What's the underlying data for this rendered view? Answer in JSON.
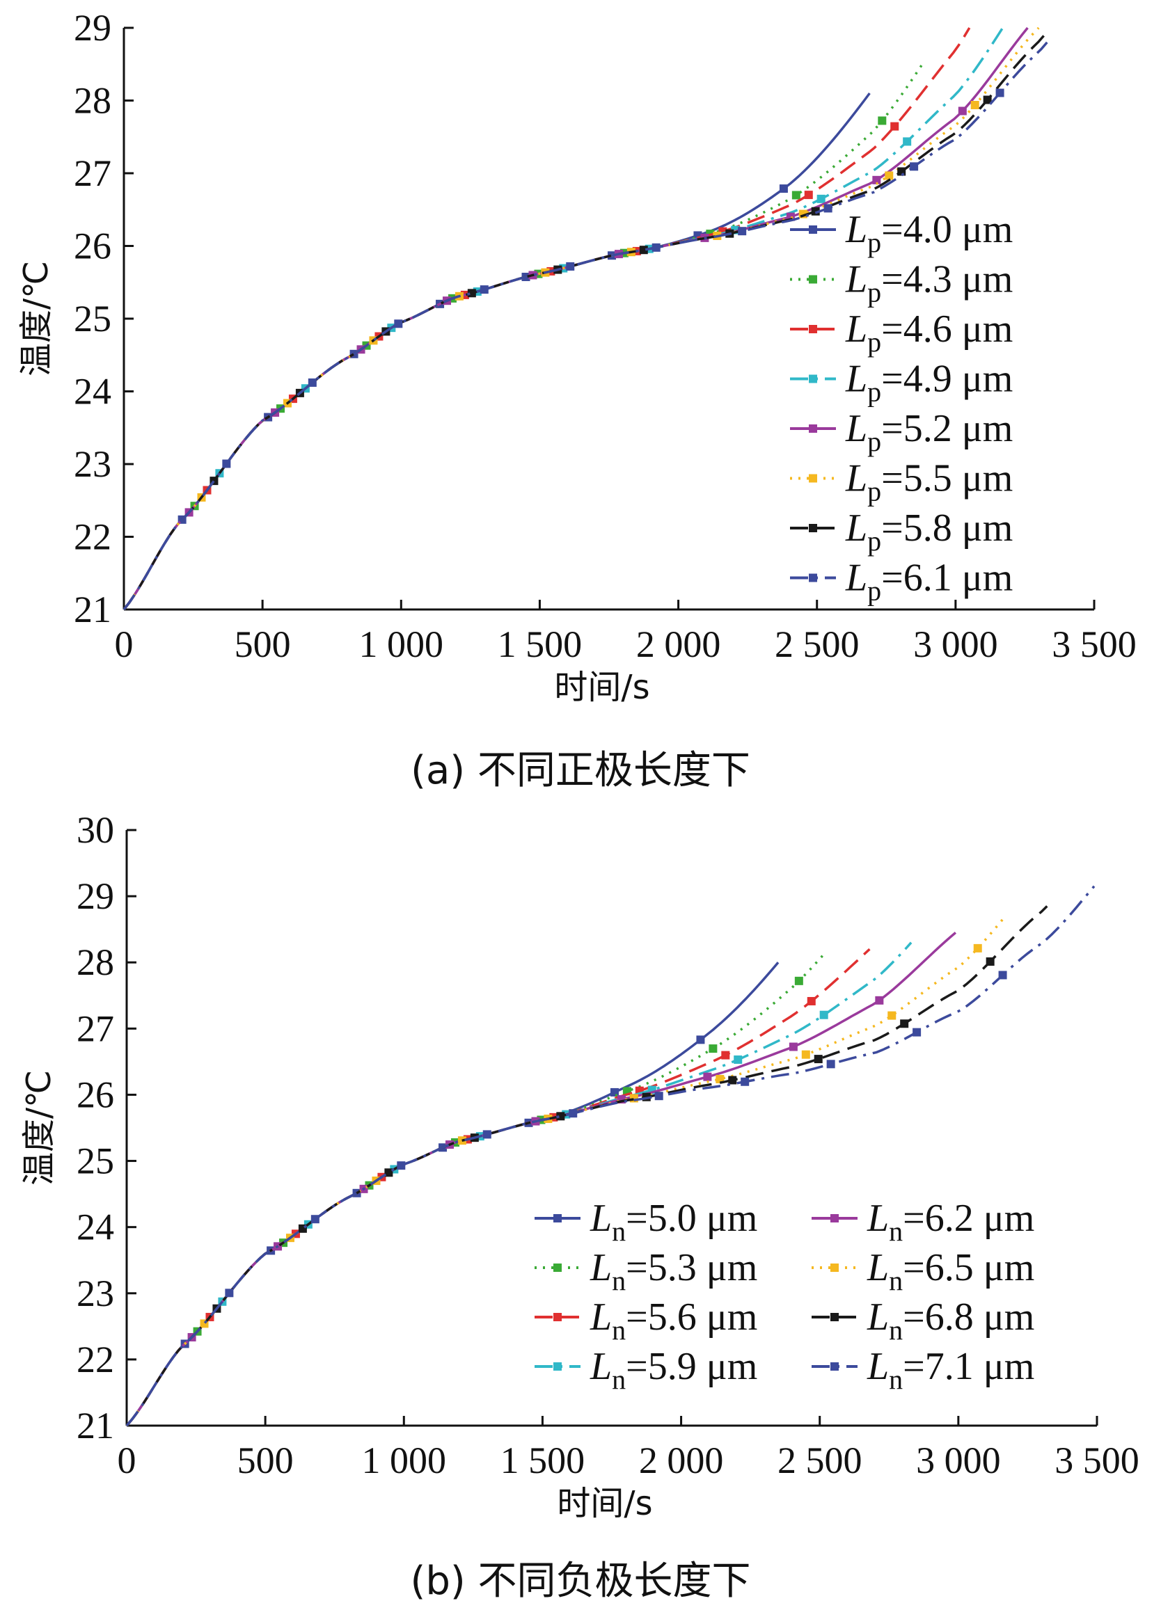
{
  "figure": {
    "caption_a": "(a)  不同正极长度下",
    "caption_b": "(b)  不同负极长度下"
  },
  "chart_data": [
    {
      "type": "line",
      "xlabel": "时间/s",
      "ylabel": "温度/℃",
      "xlim": [
        0,
        3500
      ],
      "ylim": [
        21,
        29
      ],
      "xticks": [
        0,
        500,
        1000,
        1500,
        2000,
        2500,
        3000,
        3500
      ],
      "xtick_labels": [
        "0",
        "500",
        "1 000",
        "1 500",
        "2 000",
        "2 500",
        "3 000",
        "3 500"
      ],
      "yticks": [
        21,
        22,
        23,
        24,
        25,
        26,
        27,
        28,
        29
      ],
      "ytick_labels": [
        "21",
        "22",
        "23",
        "24",
        "25",
        "26",
        "27",
        "28",
        "29"
      ],
      "legend_position": "right",
      "legend_columns": 1,
      "series": [
        {
          "name": "Lp=4.0 μm",
          "var": "L",
          "sub": "p",
          "value": "=4.0 μm",
          "color": "#3c4a9c",
          "dash": "solid",
          "end_x": 2690,
          "end_y": 28.1
        },
        {
          "name": "Lp=4.3 μm",
          "var": "L",
          "sub": "p",
          "value": "=4.3 μm",
          "color": "#3aaa35",
          "dash": "dot",
          "end_x": 2880,
          "end_y": 28.5
        },
        {
          "name": "Lp=4.6 μm",
          "var": "L",
          "sub": "p",
          "value": "=4.6 μm",
          "color": "#e03030",
          "dash": "dash",
          "end_x": 3050,
          "end_y": 29.0
        },
        {
          "name": "Lp=4.9 μm",
          "var": "L",
          "sub": "p",
          "value": "=4.9 μm",
          "color": "#30b8c8",
          "dash": "dashdot",
          "end_x": 3170,
          "end_y": 29.0
        },
        {
          "name": "Lp=5.2 μm",
          "var": "L",
          "sub": "p",
          "value": "=5.2 μm",
          "color": "#9a3a9c",
          "dash": "solid",
          "end_x": 3260,
          "end_y": 29.0
        },
        {
          "name": "Lp=5.5 μm",
          "var": "L",
          "sub": "p",
          "value": "=5.5 μm",
          "color": "#f5b820",
          "dash": "dot",
          "end_x": 3300,
          "end_y": 29.0
        },
        {
          "name": "Lp=5.8 μm",
          "var": "L",
          "sub": "p",
          "value": "=5.8 μm",
          "color": "#1a1a1a",
          "dash": "dash",
          "end_x": 3320,
          "end_y": 28.9
        },
        {
          "name": "Lp=6.1 μm",
          "var": "L",
          "sub": "p",
          "value": "=6.1 μm",
          "color": "#3c4a9c",
          "dash": "dashdot",
          "end_x": 3330,
          "end_y": 28.8
        }
      ]
    },
    {
      "type": "line",
      "xlabel": "时间/s",
      "ylabel": "温度/℃",
      "xlim": [
        0,
        3500
      ],
      "ylim": [
        21,
        30
      ],
      "xticks": [
        0,
        500,
        1000,
        1500,
        2000,
        2500,
        3000,
        3500
      ],
      "xtick_labels": [
        "0",
        "500",
        "1 000",
        "1 500",
        "2 000",
        "2 500",
        "3 000",
        "3 500"
      ],
      "yticks": [
        21,
        22,
        23,
        24,
        25,
        26,
        27,
        28,
        29,
        30
      ],
      "ytick_labels": [
        "21",
        "22",
        "23",
        "24",
        "25",
        "26",
        "27",
        "28",
        "29",
        "30"
      ],
      "legend_position": "lower right",
      "legend_columns": 2,
      "series": [
        {
          "name": "Ln=5.0 μm",
          "var": "L",
          "sub": "n",
          "value": "=5.0 μm",
          "color": "#3c4a9c",
          "dash": "solid",
          "end_x": 2350,
          "end_y": 28.0
        },
        {
          "name": "Ln=5.3 μm",
          "var": "L",
          "sub": "n",
          "value": "=5.3 μm",
          "color": "#3aaa35",
          "dash": "dot",
          "end_x": 2510,
          "end_y": 28.1
        },
        {
          "name": "Ln=5.6 μm",
          "var": "L",
          "sub": "n",
          "value": "=5.6 μm",
          "color": "#e03030",
          "dash": "dash",
          "end_x": 2680,
          "end_y": 28.2
        },
        {
          "name": "Ln=5.9 μm",
          "var": "L",
          "sub": "n",
          "value": "=5.9 μm",
          "color": "#30b8c8",
          "dash": "dashdot",
          "end_x": 2830,
          "end_y": 28.3
        },
        {
          "name": "Ln=6.2 μm",
          "var": "L",
          "sub": "n",
          "value": "=6.2 μm",
          "color": "#9a3a9c",
          "dash": "solid",
          "end_x": 2990,
          "end_y": 28.45
        },
        {
          "name": "Ln=6.5 μm",
          "var": "L",
          "sub": "n",
          "value": "=6.5 μm",
          "color": "#f5b820",
          "dash": "dot",
          "end_x": 3160,
          "end_y": 28.65
        },
        {
          "name": "Ln=6.8 μm",
          "var": "L",
          "sub": "n",
          "value": "=6.8 μm",
          "color": "#1a1a1a",
          "dash": "dash",
          "end_x": 3320,
          "end_y": 28.85
        },
        {
          "name": "Ln=7.1 μm",
          "var": "L",
          "sub": "n",
          "value": "=7.1 μm",
          "color": "#3c4a9c",
          "dash": "dashdot",
          "end_x": 3490,
          "end_y": 29.15
        }
      ]
    }
  ]
}
